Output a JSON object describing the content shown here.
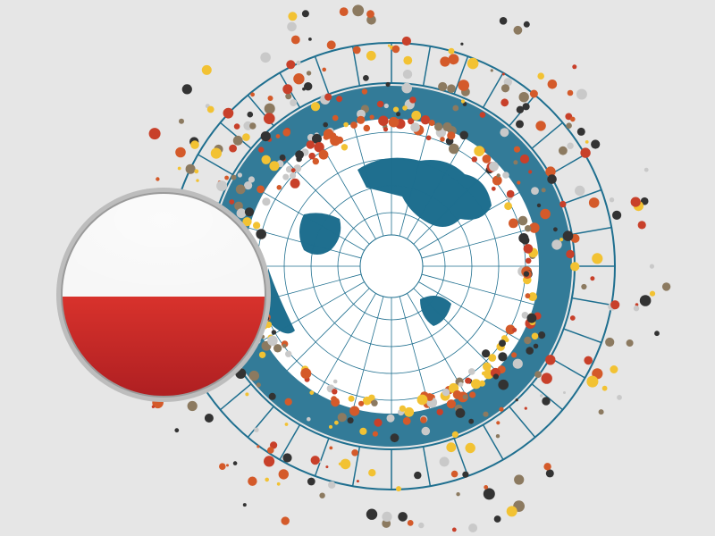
{
  "colors": {
    "background": "#e6e6e6",
    "globe_blue": "#1f6f8f",
    "globe_dark_blue": "#145a78",
    "ring_line": "#1f6f8f",
    "flag_white": "#f7f7f7",
    "flag_red": "#c8262a",
    "dot_palette": [
      "#c8402a",
      "#f2c233",
      "#8c7a60",
      "#333333",
      "#c9c9c9",
      "#d45a2a"
    ]
  },
  "illustration": {
    "subject": "globe-with-data-dots",
    "badge": "poland-flag-icon"
  }
}
